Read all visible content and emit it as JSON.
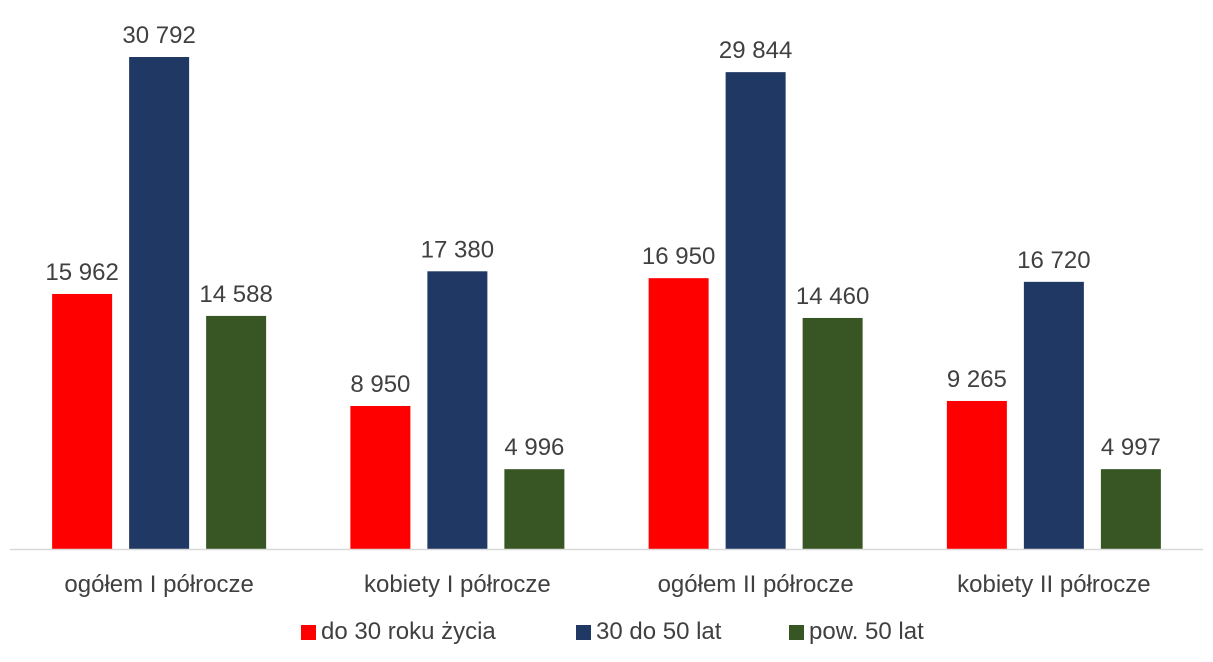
{
  "chart_data": {
    "type": "bar",
    "title": "",
    "xlabel": "",
    "ylabel": "",
    "categories": [
      "ogółem I półrocze",
      "kobiety I półrocze",
      "ogółem II półrocze",
      "kobiety II półrocze"
    ],
    "series": [
      {
        "name": "do 30 roku życia",
        "color": "#ff0000",
        "values": [
          15962,
          8950,
          16950,
          9265
        ],
        "labels": [
          "15 962",
          "8 950",
          "16 950",
          "9 265"
        ]
      },
      {
        "name": "30 do 50 lat",
        "color": "#203864",
        "values": [
          30792,
          17380,
          29844,
          16720
        ],
        "labels": [
          "30 792",
          "17 380",
          "29 844",
          "16 720"
        ]
      },
      {
        "name": "pow. 50 lat",
        "color": "#375623",
        "values": [
          14588,
          4996,
          14460,
          4997
        ],
        "labels": [
          "14 588",
          "4 996",
          "14 460",
          "4 997"
        ]
      }
    ],
    "ylim": [
      0,
      30792
    ],
    "grid": false,
    "legend": "bottom-center",
    "axis_color": "#d9d9d9",
    "label_color": "#404040"
  }
}
